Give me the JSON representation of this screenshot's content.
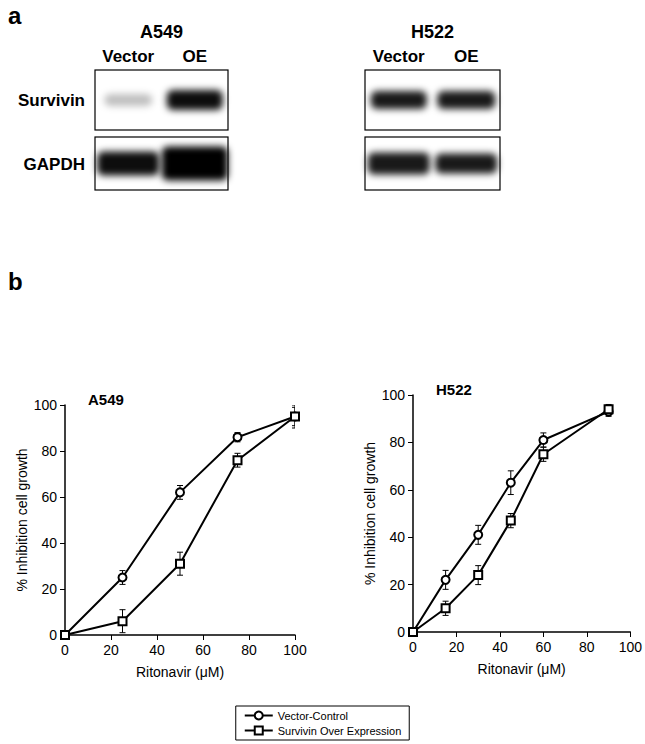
{
  "blot": {
    "label": "a",
    "groups": [
      {
        "name": "A549",
        "lanes": [
          "Vector",
          "OE"
        ]
      },
      {
        "name": "H522",
        "lanes": [
          "Vector",
          "OE"
        ]
      }
    ],
    "rows": [
      "Survivin",
      "GAPDH"
    ]
  },
  "chart_panel_label": "b",
  "chart_data": [
    {
      "type": "line",
      "title": "A549",
      "x_label": "Ritonavir (μM)",
      "y_label": "% Inhibition cell growth",
      "xlim": [
        0,
        100
      ],
      "xticks": [
        0,
        20,
        40,
        60,
        80,
        100
      ],
      "ylim": [
        0,
        100
      ],
      "yticks": [
        0,
        20,
        40,
        60,
        80,
        100
      ],
      "grid": false,
      "legend": "bottom",
      "x": [
        0,
        25,
        50,
        75,
        100
      ],
      "series": [
        {
          "name": "Vector-Control",
          "color": "#000000",
          "marker": "circle",
          "values": [
            0,
            25,
            62,
            86,
            95
          ],
          "errors": [
            0,
            3,
            3,
            2,
            5
          ]
        },
        {
          "name": "Survivin Over Expression",
          "color": "#000000",
          "marker": "square",
          "values": [
            0,
            6,
            31,
            76,
            95
          ],
          "errors": [
            0,
            5,
            5,
            3,
            4
          ]
        }
      ]
    },
    {
      "type": "line",
      "title": "H522",
      "x_label": "Ritonavir (μM)",
      "y_label": "% Inhibition cell growth",
      "xlim": [
        0,
        100
      ],
      "xticks": [
        0,
        20,
        40,
        60,
        80,
        100
      ],
      "ylim": [
        0,
        100
      ],
      "yticks": [
        0,
        20,
        40,
        60,
        80,
        100
      ],
      "grid": false,
      "legend": "bottom",
      "x": [
        0,
        15,
        30,
        45,
        60,
        90
      ],
      "series": [
        {
          "name": "Vector-Control",
          "color": "#000000",
          "marker": "circle",
          "values": [
            0,
            22,
            41,
            63,
            81,
            93
          ],
          "errors": [
            0,
            4,
            4,
            5,
            3,
            2
          ]
        },
        {
          "name": "Survivin Over Expression",
          "color": "#000000",
          "marker": "square",
          "values": [
            0,
            10,
            24,
            47,
            75,
            94
          ],
          "errors": [
            0,
            3,
            4,
            3,
            3,
            2
          ]
        }
      ]
    }
  ]
}
